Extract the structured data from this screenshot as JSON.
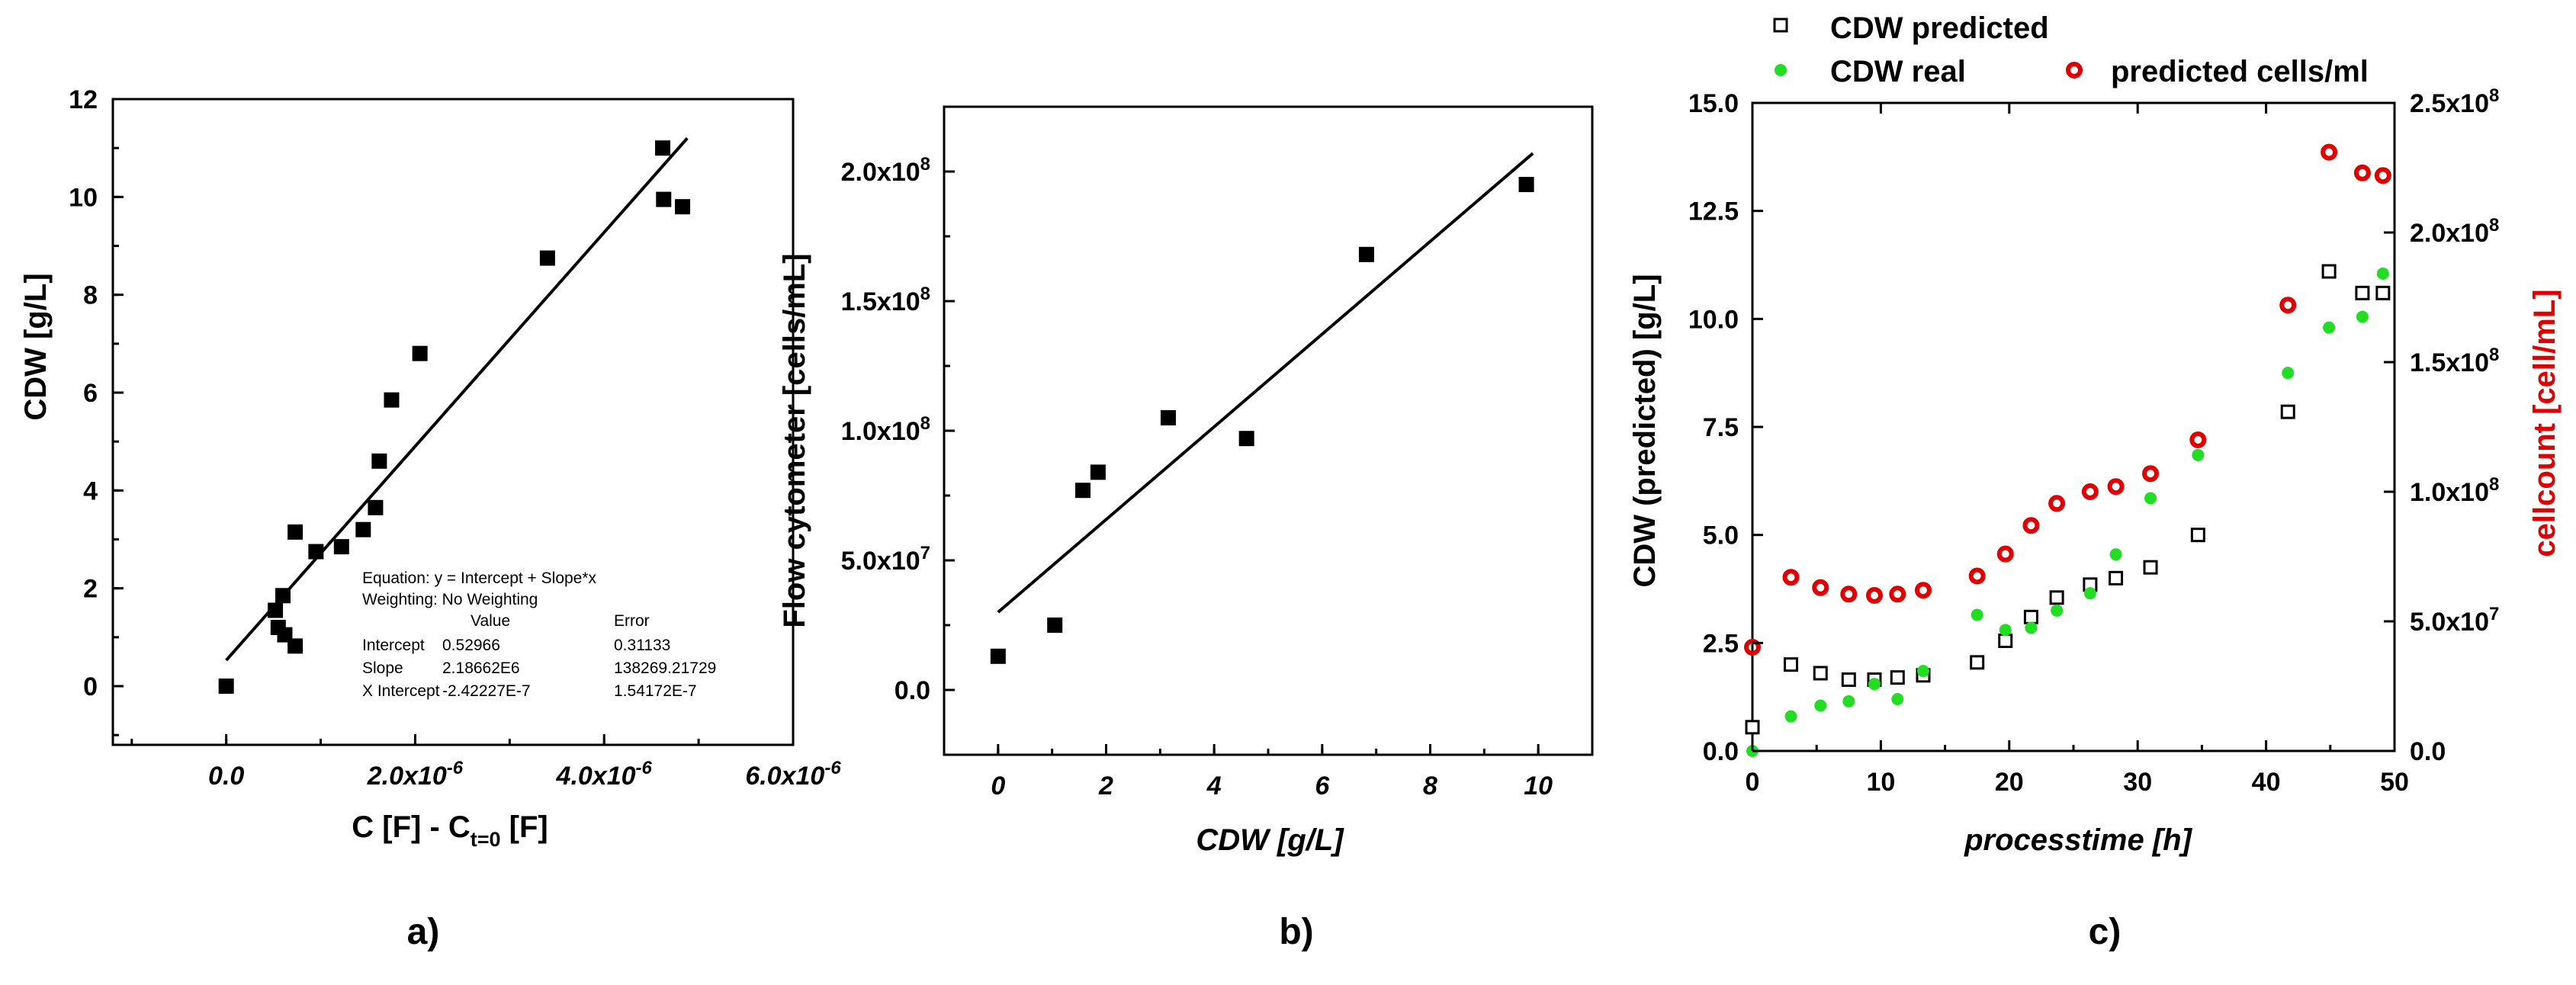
{
  "chart_data": [
    {
      "type": "scatter",
      "panel": "a)",
      "xlabel_main": "C [F] - C",
      "xlabel_sub": "t=0",
      "xlabel_tail": " [F]",
      "ylabel": "CDW [g/L]",
      "xlim": [
        -1.2e-06,
        6e-06
      ],
      "ylim": [
        -1.2,
        12
      ],
      "xticks": [
        {
          "v": 0,
          "label": "0.0"
        },
        {
          "v": 2e-06,
          "label": "2.0x10",
          "exp": "-6"
        },
        {
          "v": 4e-06,
          "label": "4.0x10",
          "exp": "-6"
        },
        {
          "v": 6e-06,
          "label": "6.0x10",
          "exp": "-6"
        }
      ],
      "yticks": [
        0,
        2,
        4,
        6,
        8,
        10,
        12
      ],
      "points": [
        [
          0,
          0
        ],
        [
          5.5e-07,
          1.2
        ],
        [
          6.2e-07,
          1.05
        ],
        [
          7.3e-07,
          0.82
        ],
        [
          5.2e-07,
          1.55
        ],
        [
          6e-07,
          1.85
        ],
        [
          7.3e-07,
          3.15
        ],
        [
          9.5e-07,
          2.75
        ],
        [
          1.22e-06,
          2.85
        ],
        [
          1.45e-06,
          3.2
        ],
        [
          1.58e-06,
          3.65
        ],
        [
          1.62e-06,
          4.6
        ],
        [
          1.75e-06,
          5.85
        ],
        [
          2.05e-06,
          6.8
        ],
        [
          3.4e-06,
          8.75
        ],
        [
          4.62e-06,
          11.0
        ],
        [
          4.63e-06,
          9.95
        ],
        [
          4.83e-06,
          9.8
        ]
      ],
      "fit": {
        "intercept": 0.52966,
        "slope": 2186620.0,
        "x_range": [
          0,
          4.88e-06
        ]
      },
      "fit_table": {
        "equation": "Equation: y = Intercept + Slope*x",
        "weighting": "Weighting: No Weighting",
        "col_value": "Value",
        "col_error": "Error",
        "rows": [
          {
            "name": "Intercept",
            "value": "0.52966",
            "error": "0.31133"
          },
          {
            "name": "Slope",
            "value": "2.18662E6",
            "error": "138269.21729"
          },
          {
            "name": "X Intercept",
            "value": "-2.42227E-7",
            "error": "1.54172E-7"
          }
        ]
      }
    },
    {
      "type": "scatter",
      "panel": "b)",
      "xlabel": "CDW [g/L]",
      "ylabel": "Flow cytometer [cells/mL]",
      "xlim": [
        -1,
        11
      ],
      "ylim": [
        -25000000.0,
        225000000.0
      ],
      "xticks": [
        {
          "v": 0,
          "label": "0"
        },
        {
          "v": 2,
          "label": "2"
        },
        {
          "v": 4,
          "label": "4"
        },
        {
          "v": 6,
          "label": "6"
        },
        {
          "v": 8,
          "label": "8"
        },
        {
          "v": 10,
          "label": "10"
        }
      ],
      "yticks": [
        {
          "v": 0,
          "label": "0.0"
        },
        {
          "v": 50000000.0,
          "label": "5.0x10",
          "exp": "7"
        },
        {
          "v": 100000000.0,
          "label": "1.0x10",
          "exp": "8"
        },
        {
          "v": 150000000.0,
          "label": "1.5x10",
          "exp": "8"
        },
        {
          "v": 200000000.0,
          "label": "2.0x10",
          "exp": "8"
        }
      ],
      "points": [
        [
          0,
          13000000.0
        ],
        [
          1.05,
          25000000.0
        ],
        [
          1.57,
          77000000.0
        ],
        [
          1.85,
          84000000.0
        ],
        [
          3.15,
          105000000.0
        ],
        [
          4.6,
          97000000.0
        ],
        [
          6.82,
          168000000.0
        ],
        [
          9.78,
          195000000.0
        ]
      ],
      "fit": {
        "x_range": [
          0,
          9.9
        ],
        "y_range": [
          30000000.0,
          207000000.0
        ]
      }
    },
    {
      "type": "scatter",
      "panel": "c)",
      "xlabel": "processtime [h]",
      "ylabel": "CDW (predicted) [g/L]",
      "ylabel_right": "cellcount [cell/mL]",
      "xlim": [
        0,
        50
      ],
      "ylim": [
        0,
        15
      ],
      "ylim_right": [
        0,
        250000000.0
      ],
      "xticks": [
        {
          "v": 0,
          "label": "0"
        },
        {
          "v": 10,
          "label": "10"
        },
        {
          "v": 20,
          "label": "20"
        },
        {
          "v": 30,
          "label": "30"
        },
        {
          "v": 40,
          "label": "40"
        },
        {
          "v": 50,
          "label": "50"
        }
      ],
      "yticks": [
        {
          "v": 0,
          "label": "0.0"
        },
        {
          "v": 2.5,
          "label": "2.5"
        },
        {
          "v": 5,
          "label": "5.0"
        },
        {
          "v": 7.5,
          "label": "7.5"
        },
        {
          "v": 10,
          "label": "10.0"
        },
        {
          "v": 12.5,
          "label": "12.5"
        },
        {
          "v": 15,
          "label": "15.0"
        }
      ],
      "yticks_right": [
        {
          "v": 0,
          "label": "0.0"
        },
        {
          "v": 50000000.0,
          "label": "5.0x10",
          "exp": "7"
        },
        {
          "v": 100000000.0,
          "label": "1.0x10",
          "exp": "8"
        },
        {
          "v": 150000000.0,
          "label": "1.5x10",
          "exp": "8"
        },
        {
          "v": 200000000.0,
          "label": "2.0x10",
          "exp": "8"
        },
        {
          "v": 250000000.0,
          "label": "2.5x10",
          "exp": "8"
        }
      ],
      "legend_position": "top",
      "series": [
        {
          "name": "CDW predicted",
          "marker": "open-square",
          "color": "#000000",
          "axis": "left",
          "points": [
            [
              0,
              0.55
            ],
            [
              3,
              2.0
            ],
            [
              5.3,
              1.8
            ],
            [
              7.5,
              1.65
            ],
            [
              9.5,
              1.65
            ],
            [
              11.3,
              1.7
            ],
            [
              13.3,
              1.75
            ],
            [
              17.5,
              2.05
            ],
            [
              19.7,
              2.55
            ],
            [
              21.7,
              3.1
            ],
            [
              23.7,
              3.55
            ],
            [
              26.3,
              3.85
            ],
            [
              28.3,
              4.0
            ],
            [
              31,
              4.25
            ],
            [
              34.7,
              5.0
            ],
            [
              41.7,
              7.85
            ],
            [
              44.9,
              11.1
            ],
            [
              47.5,
              10.6
            ],
            [
              49.1,
              10.6
            ]
          ]
        },
        {
          "name": "CDW real",
          "marker": "filled-circle",
          "color": "#22dd22",
          "axis": "left",
          "points": [
            [
              0,
              0.0
            ],
            [
              3,
              0.8
            ],
            [
              5.3,
              1.05
            ],
            [
              7.5,
              1.15
            ],
            [
              9.5,
              1.55
            ],
            [
              11.3,
              1.2
            ],
            [
              13.3,
              1.85
            ],
            [
              17.5,
              3.15
            ],
            [
              19.7,
              2.8
            ],
            [
              21.7,
              2.85
            ],
            [
              23.7,
              3.25
            ],
            [
              26.3,
              3.65
            ],
            [
              28.3,
              4.55
            ],
            [
              31,
              5.85
            ],
            [
              34.7,
              6.85
            ],
            [
              41.7,
              8.75
            ],
            [
              44.9,
              9.8
            ],
            [
              47.5,
              10.05
            ],
            [
              49.1,
              11.05
            ]
          ]
        },
        {
          "name": "predicted cells/ml",
          "marker": "ring",
          "color": "#e00000",
          "axis": "right",
          "points": [
            [
              0,
              40000000.0
            ],
            [
              3,
              67000000.0
            ],
            [
              5.3,
              63000000.0
            ],
            [
              7.5,
              60500000.0
            ],
            [
              9.5,
              60000000.0
            ],
            [
              11.3,
              60500000.0
            ],
            [
              13.3,
              62000000.0
            ],
            [
              17.5,
              67500000.0
            ],
            [
              19.7,
              76000000.0
            ],
            [
              21.7,
              87000000.0
            ],
            [
              23.7,
              95500000.0
            ],
            [
              26.3,
              100000000.0
            ],
            [
              28.3,
              102000000.0
            ],
            [
              31,
              107000000.0
            ],
            [
              34.7,
              120000000.0
            ],
            [
              41.7,
              172000000.0
            ],
            [
              44.9,
              231000000.0
            ],
            [
              47.5,
              223000000.0
            ],
            [
              49.1,
              222000000.0
            ]
          ]
        }
      ]
    }
  ]
}
